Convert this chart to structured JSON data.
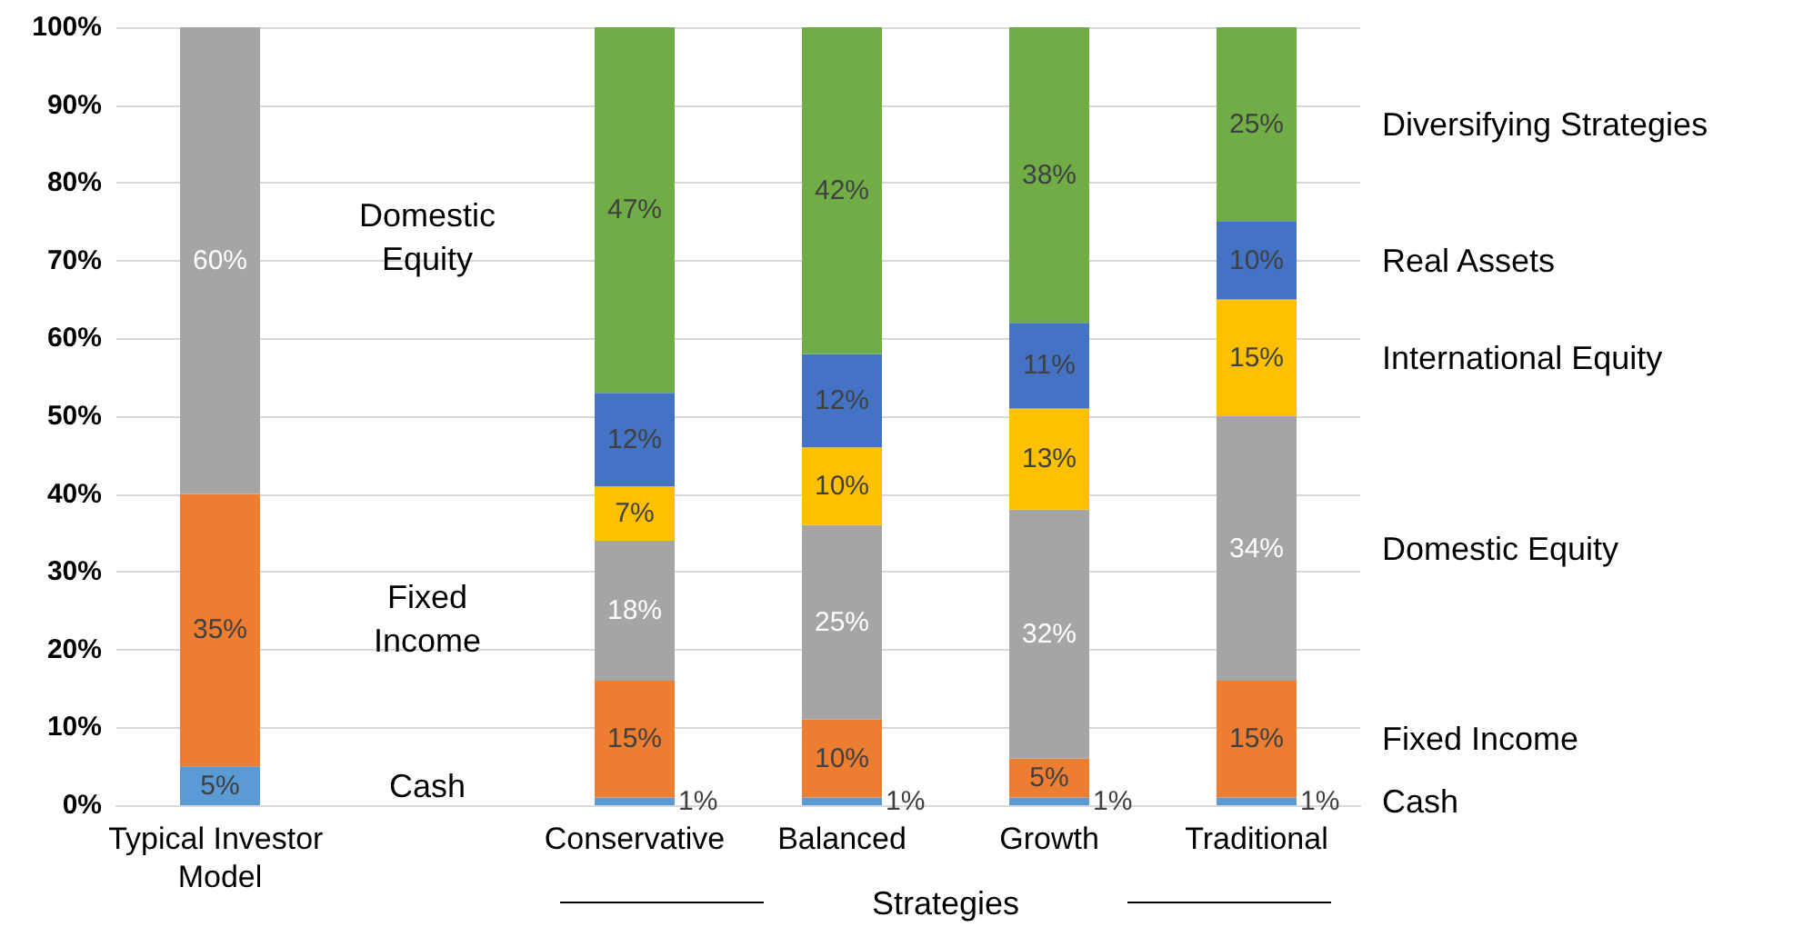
{
  "chart_data": {
    "type": "bar",
    "stacked": true,
    "categories": [
      "Typical Investor Model",
      null,
      "Conservative",
      "Balanced",
      "Growth",
      "Traditional"
    ],
    "series": [
      {
        "name": "Cash",
        "color": "#5b9bd5",
        "values": [
          5,
          null,
          1,
          1,
          1,
          1
        ],
        "value_labels": [
          "5%",
          null,
          "1%",
          "1%",
          "1%",
          "1%"
        ]
      },
      {
        "name": "Fixed Income",
        "color": "#ed7d31",
        "values": [
          35,
          null,
          15,
          10,
          5,
          15
        ],
        "value_labels": [
          "35%",
          null,
          "15%",
          "10%",
          "5%",
          "15%"
        ]
      },
      {
        "name": "Domestic Equity",
        "color": "#a5a5a5",
        "values": [
          60,
          null,
          18,
          25,
          32,
          34
        ],
        "value_labels": [
          "60%",
          null,
          "18%",
          "25%",
          "32%",
          "34%"
        ]
      },
      {
        "name": "International Equity",
        "color": "#ffc000",
        "values": [
          0,
          null,
          7,
          10,
          13,
          15
        ],
        "value_labels": [
          null,
          null,
          "7%",
          "10%",
          "13%",
          "15%"
        ]
      },
      {
        "name": "Real Assets",
        "color": "#4472c4",
        "values": [
          0,
          null,
          12,
          12,
          11,
          10
        ],
        "value_labels": [
          null,
          null,
          "12%",
          "12%",
          "11%",
          "10%"
        ]
      },
      {
        "name": "Diversifying Strategies",
        "color": "#70ad47",
        "values": [
          0,
          null,
          47,
          42,
          38,
          25
        ],
        "value_labels": [
          null,
          null,
          "47%",
          "42%",
          "38%",
          "25%"
        ]
      }
    ],
    "ylim": [
      0,
      100
    ],
    "yticks": [
      {
        "value": 0,
        "label": "0%"
      },
      {
        "value": 10,
        "label": "10%"
      },
      {
        "value": 20,
        "label": "20%"
      },
      {
        "value": 30,
        "label": "30%"
      },
      {
        "value": 40,
        "label": "40%"
      },
      {
        "value": 50,
        "label": "50%"
      },
      {
        "value": 60,
        "label": "60%"
      },
      {
        "value": 70,
        "label": "70%"
      },
      {
        "value": 80,
        "label": "80%"
      },
      {
        "value": 90,
        "label": "90%"
      },
      {
        "value": 100,
        "label": "100%"
      }
    ],
    "grid": "y",
    "legend": "right",
    "annotations": [
      "Domestic Equity",
      "Fixed Income",
      "Cash",
      "Strategies"
    ]
  }
}
